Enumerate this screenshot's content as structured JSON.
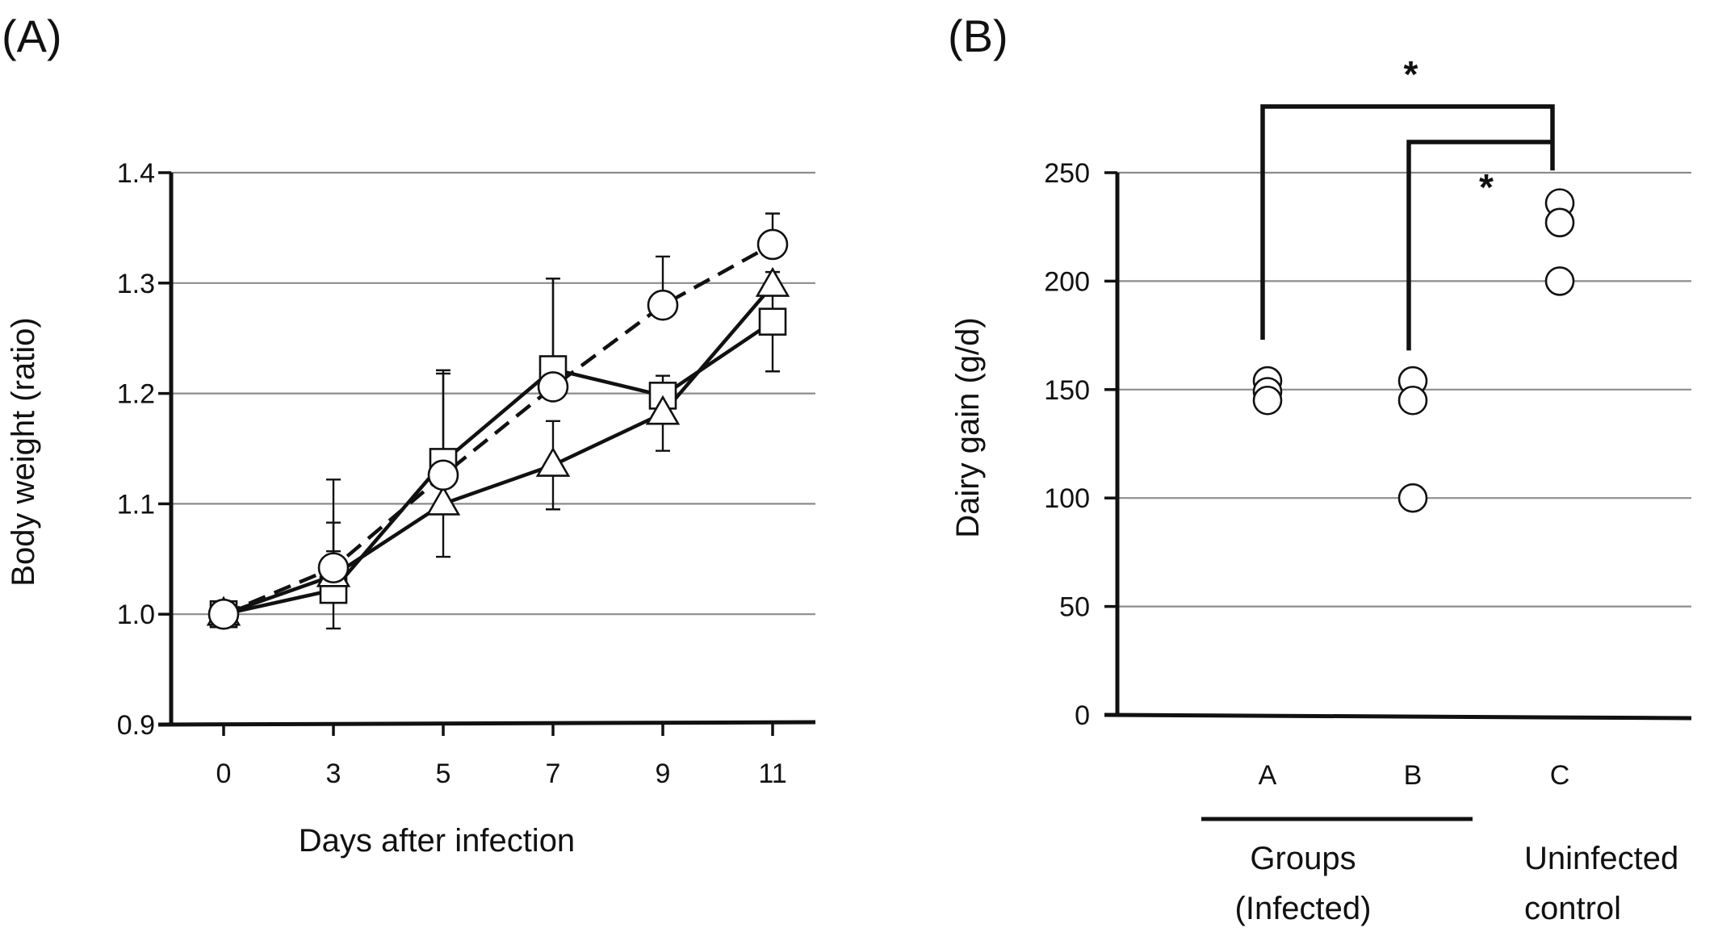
{
  "panels": {
    "a": {
      "label": "(A)"
    },
    "b": {
      "label": "(B)"
    }
  },
  "chart_data": [
    {
      "type": "line",
      "xlabel": "Days after infection",
      "ylabel": "Body weight (ratio)",
      "ylim": [
        0.9,
        1.4
      ],
      "yticks": [
        "0.9",
        "1.0",
        "1.1",
        "1.2",
        "1.3",
        "1.4"
      ],
      "categories": [
        "0",
        "3",
        "5",
        "7",
        "9",
        "11"
      ],
      "grid": true,
      "series": [
        {
          "marker": "square",
          "line": "solid",
          "values": [
            1.0,
            1.022,
            1.138,
            1.222,
            1.198,
            1.265
          ],
          "err": [
            0,
            0.035,
            0.08,
            0.082,
            0,
            0.045
          ]
        },
        {
          "marker": "triangle",
          "line": "solid",
          "values": [
            1.0,
            1.035,
            1.1,
            1.135,
            1.182,
            1.298
          ],
          "err": [
            0,
            0.048,
            0.048,
            0.04,
            0.034,
            0
          ]
        },
        {
          "marker": "circle",
          "line": "dashed",
          "values": [
            1.0,
            1.042,
            1.126,
            1.206,
            1.28,
            1.335
          ],
          "err": [
            0,
            0.08,
            0.095,
            0.098,
            0.044,
            0.028
          ]
        }
      ]
    },
    {
      "type": "scatter",
      "ylabel": "Dairy gain (g/d)",
      "ylim": [
        0,
        250
      ],
      "yticks": [
        "0",
        "50",
        "100",
        "150",
        "200",
        "250"
      ],
      "categories": [
        "A",
        "B",
        "C"
      ],
      "grid": true,
      "points": [
        {
          "group": "A",
          "values": [
            154,
            149,
            145
          ]
        },
        {
          "group": "B",
          "values": [
            154,
            145,
            100
          ]
        },
        {
          "group": "C",
          "values": [
            236,
            227,
            200
          ]
        }
      ],
      "group_labels": [
        {
          "text": [
            "Groups",
            "(Infected)"
          ],
          "categories": [
            "A",
            "B"
          ],
          "underline": true
        },
        {
          "text": [
            "Uninfected",
            "control"
          ],
          "categories": [
            "C"
          ],
          "underline": false
        }
      ],
      "significance": [
        {
          "from": "A",
          "to": "C",
          "label": "*"
        },
        {
          "from": "B",
          "to": "C",
          "label": "*"
        }
      ]
    }
  ]
}
